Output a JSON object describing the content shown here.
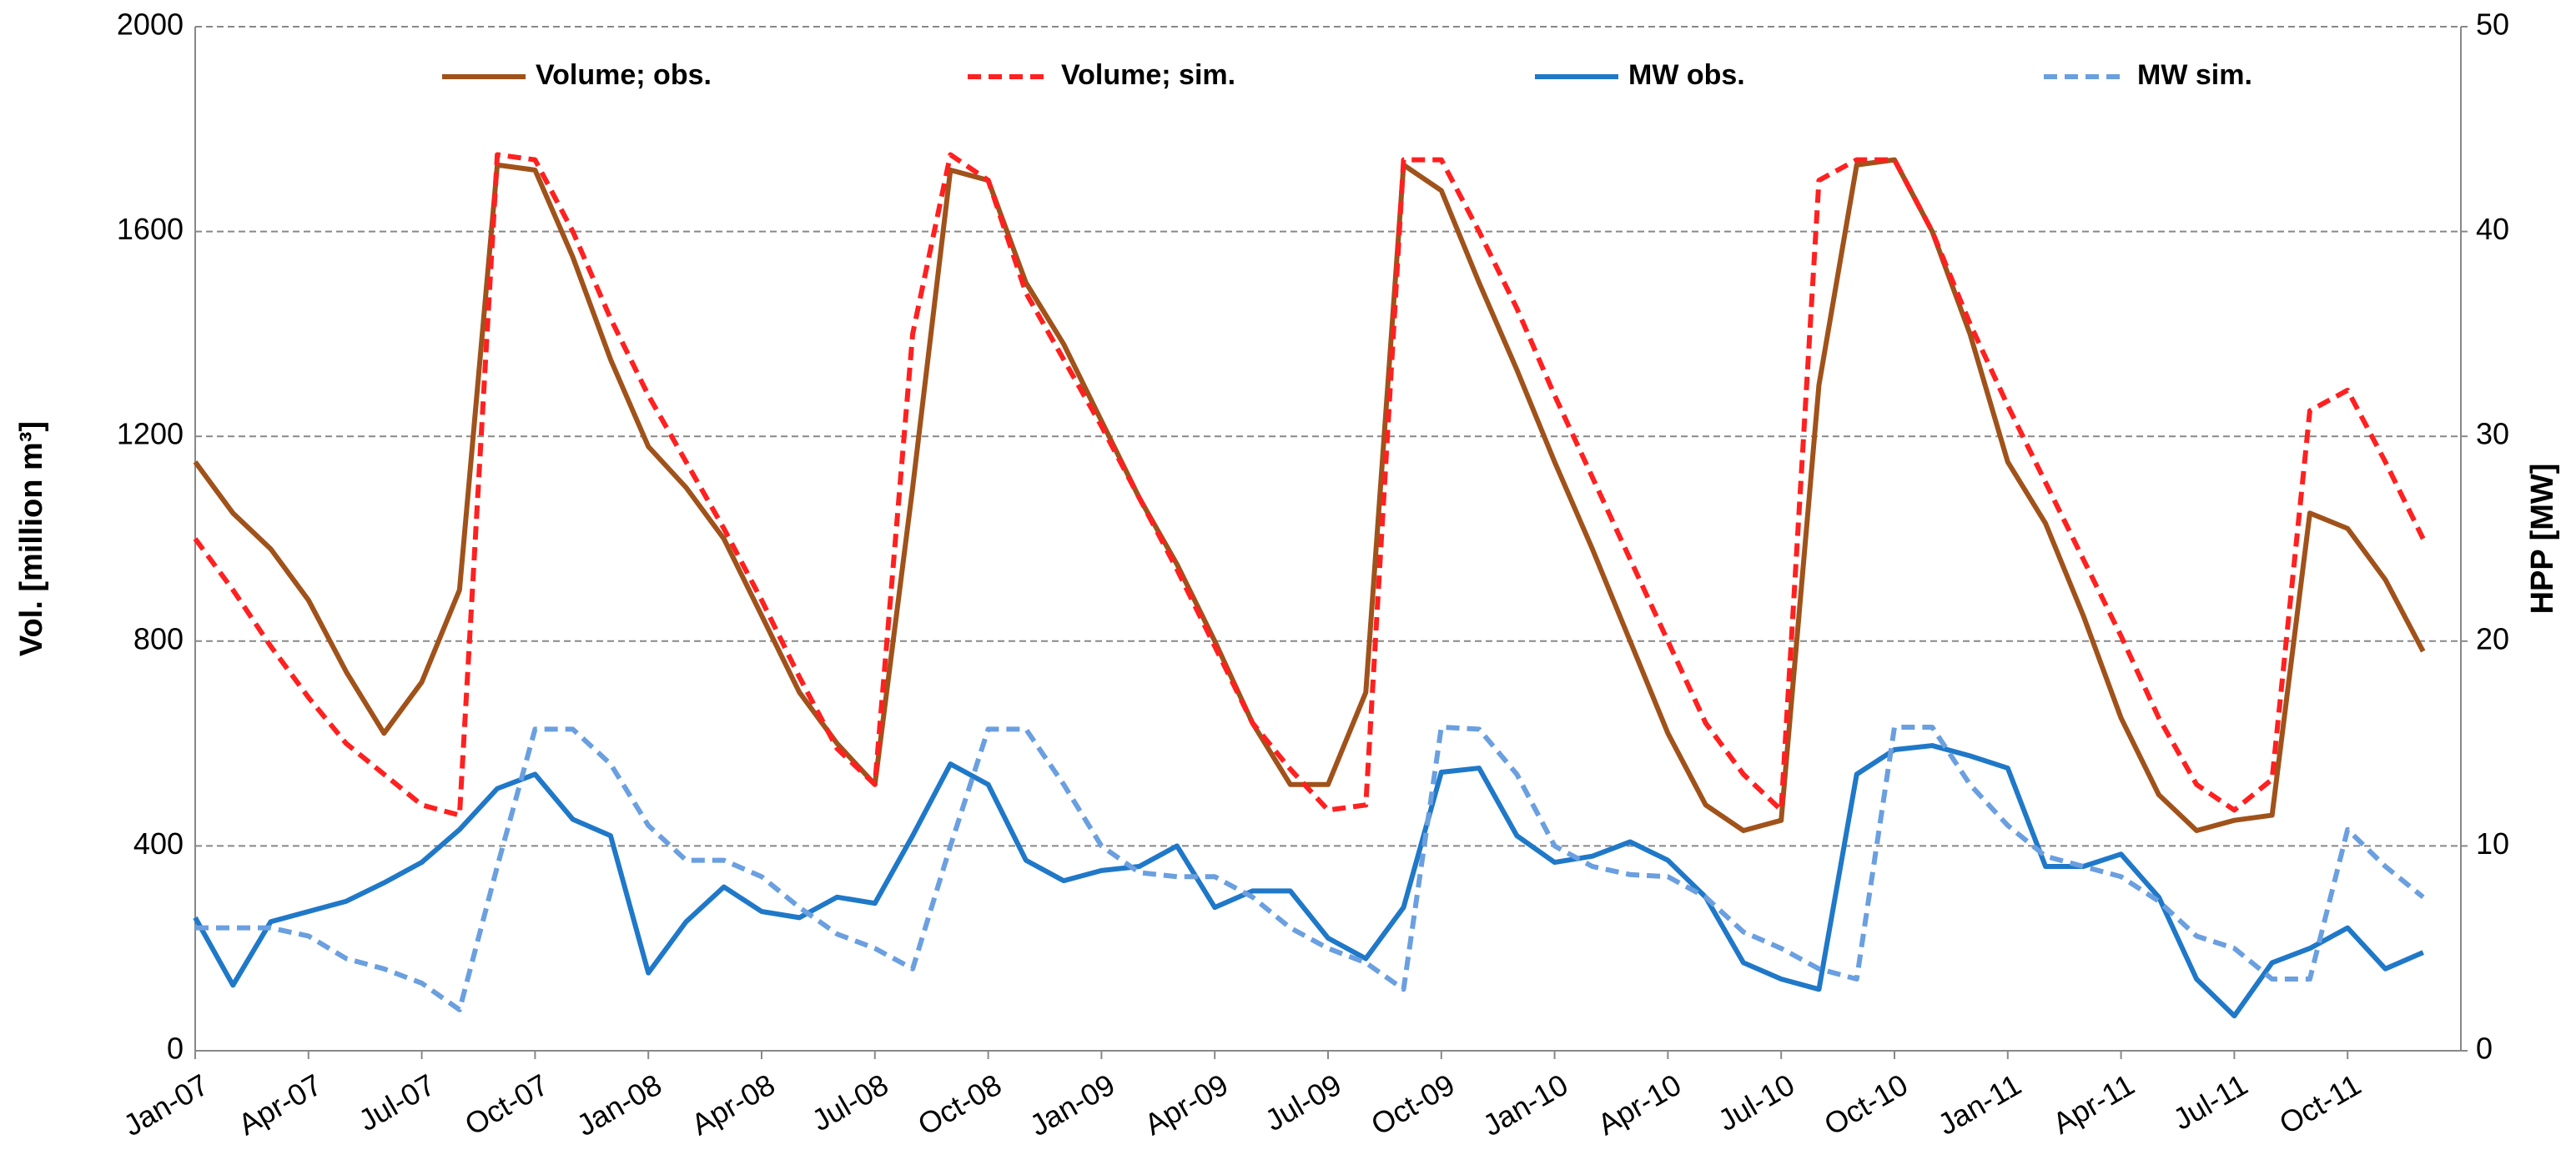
{
  "chart_data": {
    "type": "line",
    "y_label": "Vol. [million m³]",
    "y2_label": "HPP [MW]",
    "categories": [
      "Jan-07",
      null,
      null,
      "Apr-07",
      null,
      null,
      "Jul-07",
      null,
      null,
      "Oct-07",
      null,
      null,
      "Jan-08",
      null,
      null,
      "Apr-08",
      null,
      null,
      "Jul-08",
      null,
      null,
      "Oct-08",
      null,
      null,
      "Jan-09",
      null,
      null,
      "Apr-09",
      null,
      null,
      "Jul-09",
      null,
      null,
      "Oct-09",
      null,
      null,
      "Jan-10",
      null,
      null,
      "Apr-10",
      null,
      null,
      "Jul-10",
      null,
      null,
      "Oct-10",
      null,
      null,
      "Jan-11",
      null,
      null,
      "Apr-11",
      null,
      null,
      "Jul-11",
      null,
      null,
      "Oct-11",
      null,
      null
    ],
    "series": [
      {
        "name": "Volume; obs.",
        "color": "#a0521a",
        "dash": false,
        "axis": "y",
        "values": [
          1150,
          1050,
          980,
          880,
          740,
          620,
          720,
          900,
          1730,
          1720,
          1550,
          1350,
          1180,
          1100,
          1000,
          850,
          700,
          600,
          520,
          1100,
          1720,
          1700,
          1500,
          1380,
          1230,
          1080,
          950,
          800,
          640,
          520,
          520,
          700,
          1730,
          1680,
          1500,
          1330,
          1150,
          980,
          800,
          620,
          480,
          430,
          450,
          1300,
          1730,
          1740,
          1600,
          1400,
          1150,
          1030,
          850,
          650,
          500,
          430,
          450,
          460,
          1050,
          1020,
          920,
          780
        ]
      },
      {
        "name": "Volume; sim.",
        "color": "#ff2020",
        "dash": true,
        "axis": "y",
        "values": [
          1000,
          900,
          790,
          690,
          600,
          540,
          480,
          460,
          1750,
          1740,
          1600,
          1430,
          1280,
          1150,
          1020,
          880,
          730,
          590,
          520,
          1400,
          1750,
          1700,
          1480,
          1350,
          1220,
          1080,
          940,
          790,
          640,
          550,
          470,
          480,
          1740,
          1740,
          1600,
          1450,
          1280,
          1120,
          960,
          800,
          640,
          540,
          470,
          1700,
          1740,
          1740,
          1600,
          1420,
          1260,
          1110,
          960,
          810,
          650,
          520,
          470,
          530,
          1250,
          1290,
          1150,
          1000
        ]
      },
      {
        "name": "MW obs.",
        "color": "#1f78c8",
        "dash": false,
        "axis": "y2",
        "values": [
          6.5,
          3.2,
          6.3,
          6.8,
          7.3,
          8.2,
          9.2,
          10.8,
          12.8,
          13.5,
          11.3,
          10.5,
          3.8,
          6.3,
          8,
          6.8,
          6.5,
          7.5,
          7.2,
          10.5,
          14,
          13,
          9.3,
          8.3,
          8.8,
          9,
          10,
          7,
          7.8,
          7.8,
          5.5,
          4.5,
          7,
          13.6,
          13.8,
          10.5,
          9.2,
          9.5,
          10.2,
          9.3,
          7.5,
          4.3,
          3.5,
          3,
          13.5,
          14.7,
          14.9,
          14.4,
          13.8,
          9,
          9,
          9.6,
          7.5,
          3.5,
          1.7,
          4.3,
          5,
          6,
          4,
          4.8
        ]
      },
      {
        "name": "MW sim.",
        "color": "#6a9fe0",
        "dash": true,
        "axis": "y2",
        "values": [
          6,
          6,
          6,
          5.6,
          4.5,
          4,
          3.3,
          2,
          9,
          15.7,
          15.7,
          14,
          11,
          9.3,
          9.3,
          8.5,
          7,
          5.7,
          5,
          4,
          10,
          15.7,
          15.7,
          13,
          10,
          8.7,
          8.5,
          8.5,
          7.5,
          6,
          5,
          4.3,
          3,
          15.8,
          15.7,
          13.5,
          10,
          9,
          8.6,
          8.5,
          7.5,
          5.8,
          5,
          4,
          3.5,
          15.8,
          15.8,
          13,
          11,
          9.5,
          9,
          8.5,
          7.3,
          5.6,
          5,
          3.5,
          3.5,
          10.8,
          9,
          7.5
        ]
      }
    ],
    "ylim": [
      0,
      2000
    ],
    "yticks": [
      0,
      400,
      800,
      1200,
      1600,
      2000
    ],
    "y2lim": [
      0,
      50
    ],
    "y2ticks": [
      0,
      10,
      20,
      30,
      40,
      50
    ],
    "grid": true,
    "legend": "top"
  }
}
